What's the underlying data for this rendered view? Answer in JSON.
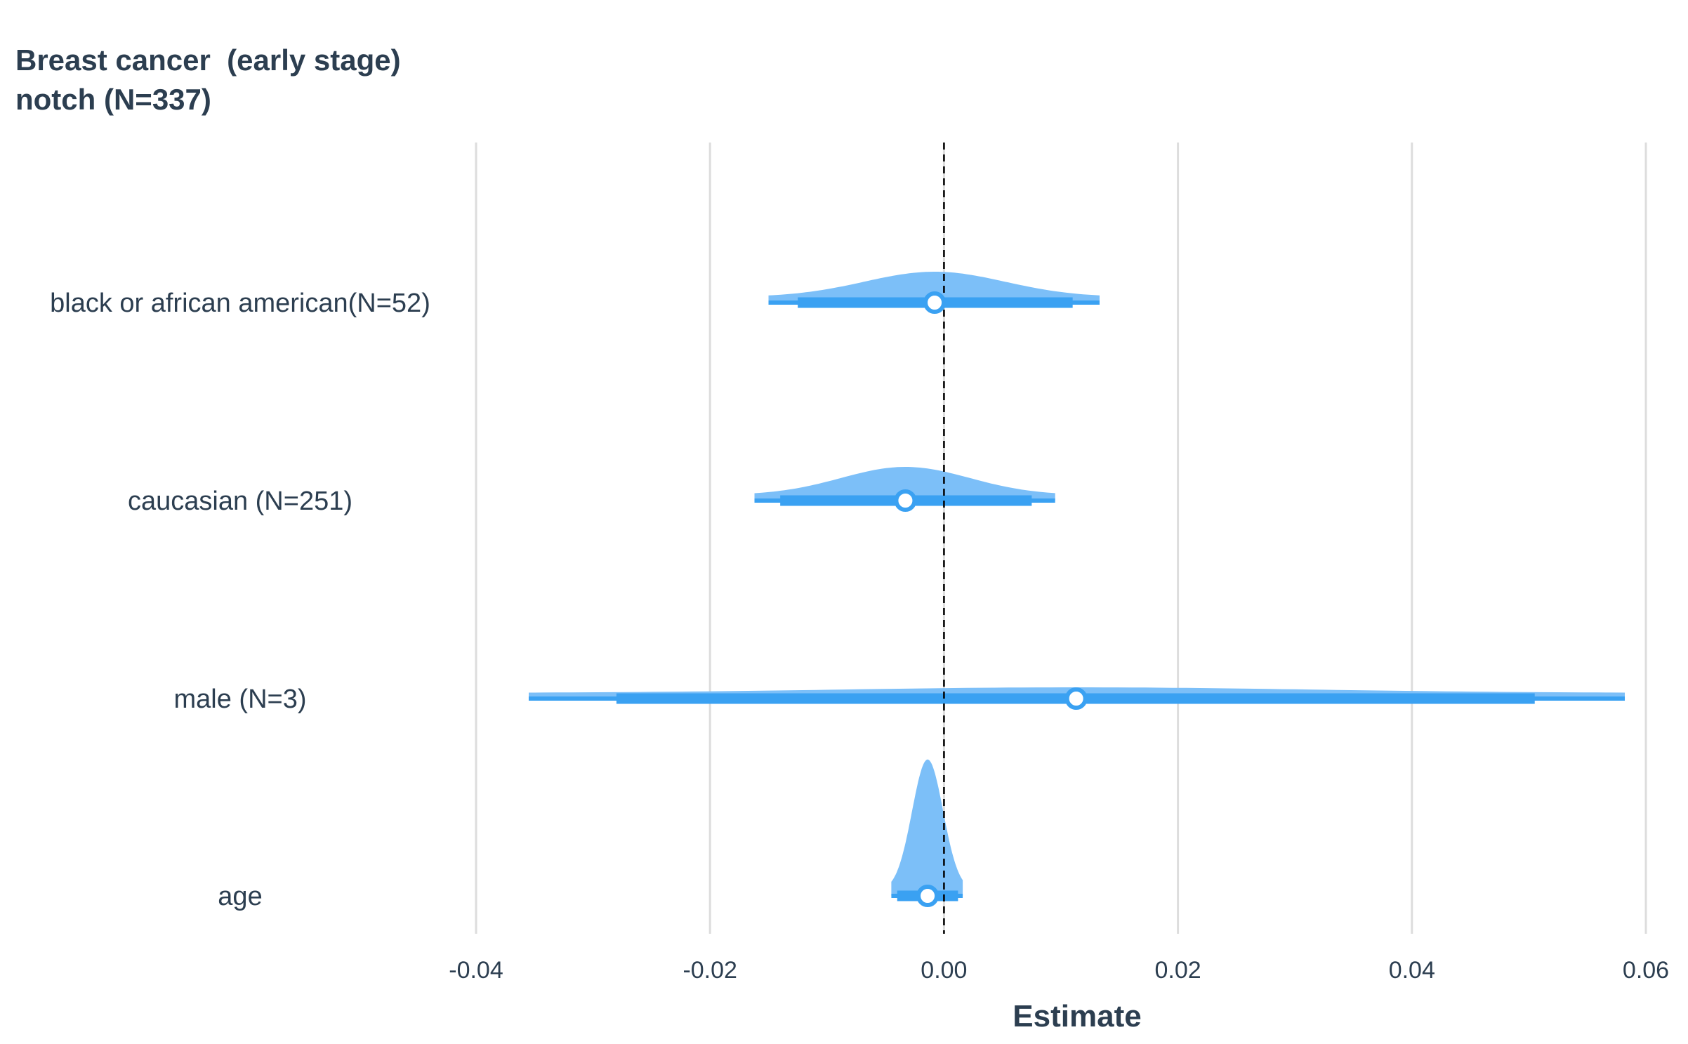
{
  "chart_data": {
    "type": "forest-halfeye",
    "title_lines": [
      "Breast cancer  (early stage)",
      "notch (N=337)"
    ],
    "xlabel": "Estimate",
    "xlim": [
      -0.04,
      0.06
    ],
    "xticks": [
      -0.04,
      -0.02,
      0.0,
      0.02,
      0.04,
      0.06
    ],
    "xtick_labels": [
      "-0.04",
      "-0.02",
      "0.00",
      "0.02",
      "0.04",
      "0.06"
    ],
    "reference_line": 0,
    "grid": "vertical",
    "colors": {
      "density": "#7cbff8",
      "interval": "#3aa1f2",
      "point_fill": "#ffffff",
      "point_stroke": "#3aa1f2",
      "grid": "#dddddd",
      "reference": "#000000"
    },
    "terms": [
      {
        "label": "black or african american(N=52)",
        "estimate": -0.0008,
        "thick": [
          -0.0125,
          0.011
        ],
        "thin": [
          -0.015,
          0.0133
        ],
        "density_height": 0.9
      },
      {
        "label": "caucasian (N=251)",
        "estimate": -0.0033,
        "thick": [
          -0.014,
          0.0075
        ],
        "thin": [
          -0.0162,
          0.0095
        ],
        "density_height": 1.0
      },
      {
        "label": "male (N=3)",
        "estimate": 0.0113,
        "thick": [
          -0.028,
          0.0505
        ],
        "thin": [
          -0.0355,
          0.0582
        ],
        "density_height": 0.2
      },
      {
        "label": "age",
        "estimate": -0.0014,
        "thick": [
          -0.004,
          0.0012
        ],
        "thin": [
          -0.0045,
          0.0016
        ],
        "density_height": 4.9
      }
    ]
  }
}
